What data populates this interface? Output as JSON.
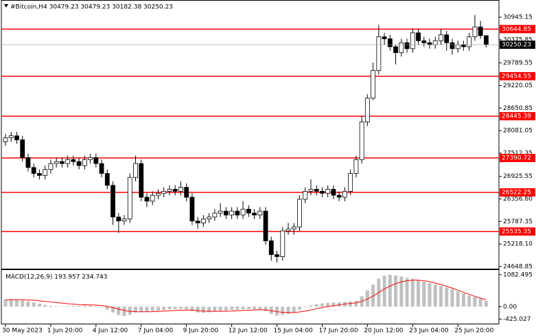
{
  "chart_data": [
    {
      "type": "candlestick",
      "title": "#Bitcoin,H4  30479.23 30479.23 30182.38 30250.23",
      "categories": [
        "30 May 2023",
        null,
        null,
        null,
        null,
        null,
        null,
        null,
        "1 Jun 20:00",
        null,
        null,
        null,
        null,
        null,
        null,
        null,
        "4 Jun 12:00",
        null,
        null,
        null,
        null,
        null,
        null,
        null,
        "7 Jun 04:00",
        null,
        null,
        null,
        null,
        null,
        null,
        null,
        "9 Jun 20:00",
        null,
        null,
        null,
        null,
        null,
        null,
        null,
        "12 Jun 12:00",
        null,
        null,
        null,
        null,
        null,
        null,
        null,
        "15 Jun 04:00",
        null,
        null,
        null,
        null,
        null,
        null,
        null,
        "17 Jun 20:00",
        null,
        null,
        null,
        null,
        null,
        null,
        null,
        "20 Jun 12:00",
        null,
        null,
        null,
        null,
        null,
        null,
        null,
        "23 Jun 04:00",
        null,
        null,
        null,
        null,
        null,
        null,
        null,
        "25 Jun 20:00",
        null,
        null,
        null,
        null,
        null
      ],
      "open": [
        27800,
        27900,
        27950,
        27850,
        27400,
        27150,
        27000,
        26950,
        27100,
        27250,
        27300,
        27250,
        27350,
        27300,
        27200,
        27350,
        27400,
        27250,
        27000,
        26700,
        25900,
        25800,
        25850,
        26900,
        27250,
        26400,
        26300,
        26450,
        26500,
        26550,
        26600,
        26550,
        26650,
        26400,
        25800,
        25750,
        25850,
        25900,
        26000,
        26050,
        25950,
        26050,
        25950,
        26100,
        26000,
        25950,
        26050,
        25300,
        24950,
        24900,
        25550,
        25600,
        25650,
        26350,
        26550,
        26600,
        26550,
        26500,
        26600,
        26450,
        26400,
        26550,
        27000,
        27350,
        28300,
        28900,
        29600,
        30450,
        30400,
        30200,
        30050,
        30300,
        30150,
        30550,
        30350,
        30300,
        30250,
        30350,
        30500,
        30300,
        30150,
        30250,
        30200,
        30450,
        30700,
        30479.23
      ],
      "high": [
        28000,
        28050,
        28050,
        27950,
        27500,
        27250,
        27100,
        27200,
        27350,
        27400,
        27400,
        27450,
        27450,
        27400,
        27450,
        27500,
        27500,
        27350,
        27100,
        26800,
        26000,
        25950,
        27000,
        27450,
        27350,
        26500,
        26550,
        26600,
        26650,
        26700,
        26700,
        26800,
        26750,
        26500,
        25900,
        25950,
        26000,
        26100,
        26250,
        26150,
        26150,
        26150,
        26300,
        26200,
        26100,
        26150,
        26150,
        25400,
        25050,
        25650,
        25750,
        25750,
        26450,
        26650,
        26850,
        26700,
        26650,
        26700,
        26700,
        26550,
        26650,
        27100,
        27450,
        28450,
        29000,
        29800,
        30750,
        30550,
        30500,
        30250,
        30400,
        30400,
        30650,
        30650,
        30450,
        30400,
        30450,
        30650,
        30600,
        30400,
        30350,
        30350,
        30550,
        31000,
        30850,
        30479.23
      ],
      "low": [
        27700,
        27800,
        27750,
        27300,
        27050,
        26900,
        26850,
        26850,
        27000,
        27150,
        27150,
        27150,
        27200,
        27100,
        27100,
        27250,
        27150,
        26900,
        26600,
        25700,
        25500,
        25700,
        25750,
        26800,
        26300,
        26150,
        26200,
        26350,
        26400,
        26450,
        26450,
        26450,
        26300,
        25700,
        25600,
        25650,
        25750,
        25800,
        25900,
        25850,
        25850,
        25850,
        25850,
        25900,
        25850,
        25850,
        25200,
        24800,
        24750,
        24800,
        25450,
        25450,
        25550,
        26250,
        26450,
        26450,
        26400,
        26400,
        26350,
        26300,
        26300,
        26450,
        26900,
        27250,
        28200,
        28850,
        29500,
        30250,
        30100,
        29750,
        29950,
        30050,
        30050,
        30250,
        30200,
        30150,
        30150,
        30250,
        30100,
        30000,
        30050,
        30100,
        30100,
        30350,
        30400,
        30182.38
      ],
      "close": [
        27900,
        27950,
        27850,
        27400,
        27150,
        27000,
        26950,
        27100,
        27250,
        27300,
        27250,
        27350,
        27300,
        27200,
        27350,
        27400,
        27250,
        27000,
        26700,
        25900,
        25800,
        25850,
        26900,
        27250,
        26400,
        26300,
        26450,
        26500,
        26550,
        26600,
        26550,
        26650,
        26400,
        25800,
        25750,
        25850,
        25900,
        26000,
        26050,
        25950,
        26050,
        25950,
        26100,
        26000,
        25950,
        26050,
        25300,
        24950,
        24900,
        25550,
        25600,
        25650,
        26350,
        26550,
        26600,
        26550,
        26500,
        26600,
        26450,
        26400,
        26550,
        27000,
        27350,
        28300,
        28900,
        29600,
        30450,
        30400,
        30200,
        30050,
        30300,
        30150,
        30550,
        30350,
        30300,
        30250,
        30350,
        30500,
        30300,
        30150,
        30250,
        30200,
        30450,
        30700,
        30479.23,
        30250.23
      ],
      "color": "#000000",
      "ylim": [
        24614,
        31379
      ],
      "yticks": [
        30945.15,
        30375.85,
        29789.55,
        29220.05,
        28650.85,
        28081.05,
        27512.35,
        26925.55,
        {
          "value": 26356.6,
          "label": "26356.60"
        },
        25787.35,
        {
          "value": 25218.1,
          "label": "25218.10"
        },
        24648.85
      ],
      "levels": [
        30644.85,
        29454.55,
        28445.39,
        27390.72,
        26522.25,
        25535.35
      ],
      "level_color": "#ff0000"
    },
    {
      "type": "macd",
      "title": "MACD(12,26,9) 193.957 234.743",
      "ylim": [
        -576,
        1243
      ],
      "yticks": [
        1082.495,
        {
          "value": 0,
          "label": "0.00"
        },
        -425.027
      ],
      "series": [
        {
          "type": "bar",
          "color": "#c0c0c0",
          "values": [
            250,
            260,
            240,
            220,
            180,
            150,
            100,
            60,
            30,
            20,
            10,
            20,
            30,
            30,
            40,
            40,
            20,
            -20,
            -100,
            -200,
            -280,
            -320,
            -280,
            -200,
            -180,
            -170,
            -150,
            -130,
            -110,
            -90,
            -80,
            -70,
            -90,
            -150,
            -200,
            -210,
            -190,
            -170,
            -150,
            -130,
            -110,
            -100,
            -90,
            -80,
            -80,
            -90,
            -150,
            -250,
            -300,
            -280,
            -250,
            -200,
            -100,
            -20,
            40,
            80,
            110,
            130,
            140,
            150,
            160,
            170,
            200,
            350,
            550,
            750,
            950,
            1050,
            1082,
            1060,
            1020,
            980,
            950,
            900,
            850,
            800,
            750,
            700,
            650,
            600,
            520,
            450,
            380,
            330,
            280,
            193.957
          ]
        },
        {
          "type": "line",
          "color": "#ff0000",
          "values": [
            230,
            235,
            237,
            236,
            230,
            220,
            200,
            180,
            160,
            140,
            120,
            100,
            85,
            70,
            65,
            60,
            55,
            40,
            10,
            -30,
            -80,
            -130,
            -160,
            -170,
            -175,
            -175,
            -170,
            -160,
            -150,
            -140,
            -130,
            -120,
            -115,
            -120,
            -135,
            -150,
            -155,
            -160,
            -160,
            -155,
            -150,
            -140,
            -130,
            -120,
            -110,
            -105,
            -115,
            -140,
            -170,
            -190,
            -200,
            -200,
            -180,
            -150,
            -110,
            -70,
            -30,
            0,
            30,
            60,
            90,
            110,
            130,
            180,
            260,
            360,
            480,
            600,
            700,
            780,
            840,
            880,
            900,
            900,
            880,
            850,
            800,
            750,
            690,
            630,
            560,
            490,
            420,
            350,
            290,
            234.743
          ]
        }
      ]
    }
  ]
}
